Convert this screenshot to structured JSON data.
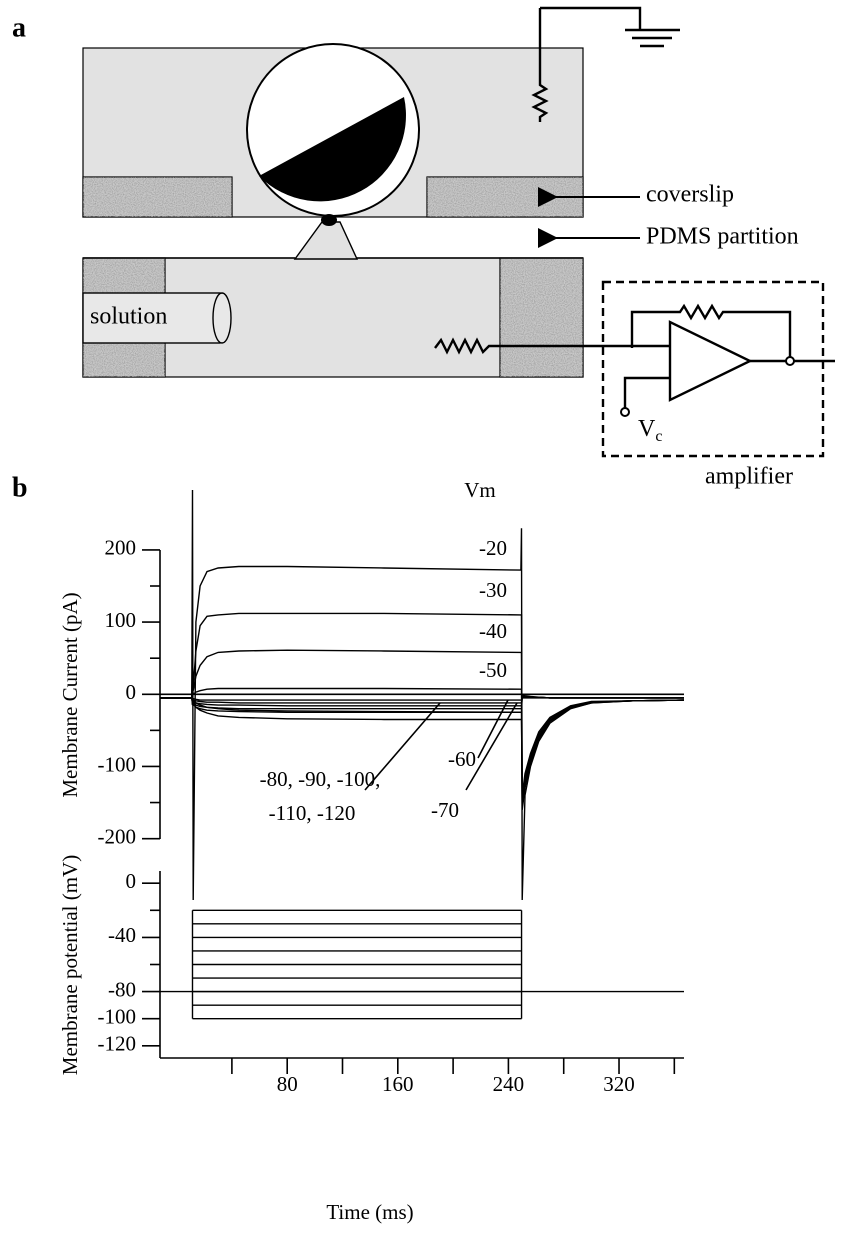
{
  "panel_a": {
    "label": "a",
    "coverslip": "coverslip",
    "partition": "PDMS partition",
    "solution": "solution",
    "vc": "V",
    "vc_sub": "c",
    "amplifier": "amplifier"
  },
  "panel_b": {
    "label": "b"
  },
  "chart_data": [
    {
      "type": "line",
      "ylabel": "Membrane Current (pA)",
      "legend_title": "Vm",
      "xlim": [
        -12,
        367
      ],
      "ylim": [
        -285,
        283
      ],
      "yticks": [
        -200,
        -100,
        0,
        100,
        200
      ],
      "yminor_ticks": [
        -150,
        -50,
        50,
        150
      ],
      "x": [
        -12,
        11,
        11.5,
        12,
        14,
        17,
        22,
        30,
        45,
        80,
        150,
        249,
        249.5,
        250,
        252,
        256,
        262,
        270,
        285,
        300,
        330,
        367
      ],
      "series": [
        {
          "name": "-20",
          "color": "#000000",
          "values": [
            -5,
            -5,
            283,
            -285,
            100,
            150,
            170,
            175,
            177,
            177,
            175,
            172,
            230,
            -285,
            -140,
            -100,
            -65,
            -40,
            -20,
            -12,
            -9,
            -8
          ]
        },
        {
          "name": "-30",
          "color": "#000000",
          "values": [
            -5,
            -5,
            60,
            10,
            60,
            95,
            108,
            110,
            112,
            112,
            112,
            110,
            110,
            -160,
            -130,
            -95,
            -62,
            -38,
            -19,
            -12,
            -9,
            -8
          ]
        },
        {
          "name": "-40",
          "color": "#000000",
          "values": [
            -5,
            -5,
            30,
            5,
            25,
            40,
            52,
            58,
            60,
            61,
            60,
            58,
            58,
            -155,
            -125,
            -92,
            -60,
            -37,
            -18,
            -11,
            -9,
            -8
          ]
        },
        {
          "name": "-50",
          "color": "#000000",
          "values": [
            -5,
            -5,
            10,
            0,
            3,
            5,
            7,
            8,
            8,
            8,
            8,
            7,
            7,
            -150,
            -120,
            -90,
            -58,
            -36,
            -18,
            -11,
            -9,
            -8
          ]
        },
        {
          "name": "-60",
          "color": "#000000",
          "values": [
            -5,
            -5,
            -10,
            -8,
            -12,
            -15,
            -18,
            -20,
            -22,
            -23,
            -24,
            -25,
            -25,
            -145,
            -115,
            -86,
            -55,
            -34,
            -17,
            -11,
            -9,
            -8
          ]
        },
        {
          "name": "-70",
          "color": "#000000",
          "values": [
            -5,
            -5,
            -15,
            -10,
            -18,
            -22,
            -26,
            -30,
            -32,
            -34,
            -35,
            -35,
            -35,
            -140,
            -110,
            -82,
            -52,
            -32,
            -16,
            -10,
            -9,
            -8
          ]
        },
        {
          "color": "#000000",
          "values": [
            -5,
            -5,
            -6,
            -6,
            -7,
            -8,
            -8,
            -8,
            -8,
            -8,
            -8,
            -8,
            -8,
            -5,
            -5,
            -5,
            -5,
            -5,
            -5,
            -5,
            -5,
            -5
          ]
        },
        {
          "color": "#000000",
          "values": [
            -5,
            -5,
            -8,
            -8,
            -9,
            -10,
            -11,
            -11,
            -12,
            -12,
            -12,
            -12,
            -12,
            -4,
            -4,
            -4,
            -4,
            -5,
            -5,
            -5,
            -5,
            -5
          ]
        },
        {
          "color": "#000000",
          "values": [
            -5,
            -5,
            -10,
            -10,
            -12,
            -13,
            -14,
            -15,
            -15,
            -16,
            -16,
            -16,
            -16,
            -3,
            -3,
            -4,
            -4,
            -5,
            -5,
            -5,
            -5,
            -5
          ]
        },
        {
          "color": "#000000",
          "values": [
            -5,
            -5,
            -12,
            -12,
            -15,
            -17,
            -18,
            -19,
            -20,
            -20,
            -20,
            -20,
            -20,
            -2,
            -3,
            -4,
            -4,
            -5,
            -5,
            -5,
            -5,
            -5
          ]
        },
        {
          "color": "#000000",
          "values": [
            -5,
            -5,
            -14,
            -14,
            -18,
            -20,
            -22,
            -23,
            -24,
            -25,
            -25,
            -25,
            -25,
            -1,
            -2,
            -3,
            -4,
            -5,
            -5,
            -5,
            -5,
            -5
          ]
        }
      ],
      "annotations": [
        "-80, -90, -100,",
        "-110, -120"
      ]
    },
    {
      "type": "step",
      "ylabel": "Membrane potential (mV)",
      "xlabel": "Time (ms)",
      "xlim": [
        -12,
        367
      ],
      "ylim": [
        -129,
        9
      ],
      "yticks": [
        0,
        -40,
        -80,
        -100,
        -120
      ],
      "yminor_ticks": [
        -20,
        -60
      ],
      "xticks": [
        80,
        160,
        240,
        320
      ],
      "xminor_ticks": [
        40,
        120,
        200,
        280,
        360
      ],
      "holding": -80,
      "pulse_start": 11.5,
      "pulse_end": 249.5,
      "levels": [
        -20,
        -30,
        -40,
        -50,
        -60,
        -70,
        -80,
        -90,
        -100
      ],
      "color": "#000000"
    }
  ]
}
